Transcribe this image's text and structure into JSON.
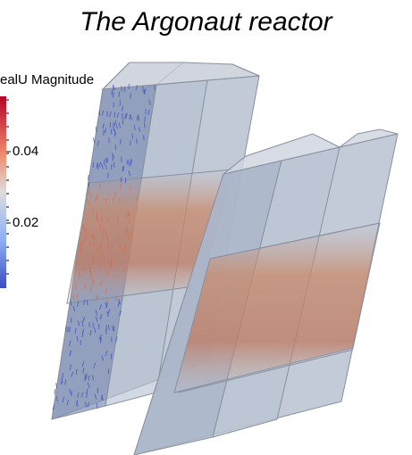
{
  "title": "The Argonaut reactor",
  "colorbar": {
    "label": "ealU Magnitude",
    "ticks": [
      "0.04",
      "0.02"
    ]
  }
}
